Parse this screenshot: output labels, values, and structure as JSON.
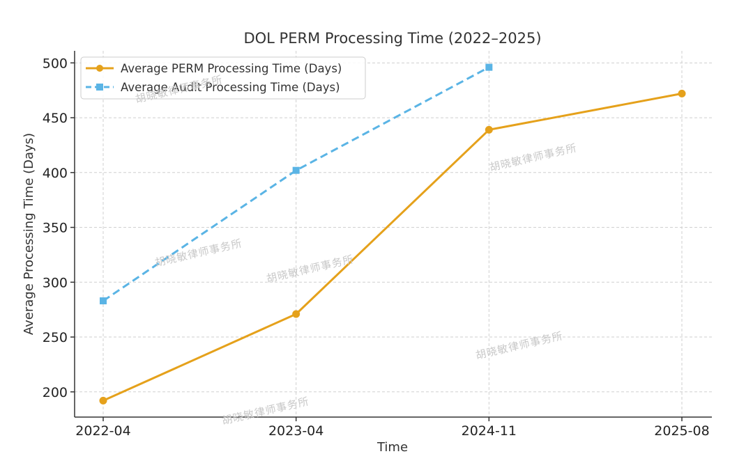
{
  "chart_data": {
    "type": "line",
    "title": "DOL PERM Processing Time (2022–2025)",
    "xlabel": "Time",
    "ylabel": "Average Processing Time (Days)",
    "categories": [
      "2022-04",
      "2023-04",
      "2024-11",
      "2025-08"
    ],
    "ylim": [
      177,
      511
    ],
    "yticks": [
      200,
      250,
      300,
      350,
      400,
      450,
      500
    ],
    "grid": true,
    "legend_position": "top-left",
    "series": [
      {
        "name": "Average PERM Processing Time (Days)",
        "values": [
          192,
          271,
          439,
          472
        ],
        "color": "#E5A11B",
        "style": "solid",
        "marker": "circle"
      },
      {
        "name": "Average Audit Processing Time (Days)",
        "values": [
          283,
          402,
          496,
          null
        ],
        "color": "#5AB4E5",
        "style": "dashed",
        "marker": "square"
      }
    ],
    "watermark": "胡晓敏律师事务所"
  }
}
